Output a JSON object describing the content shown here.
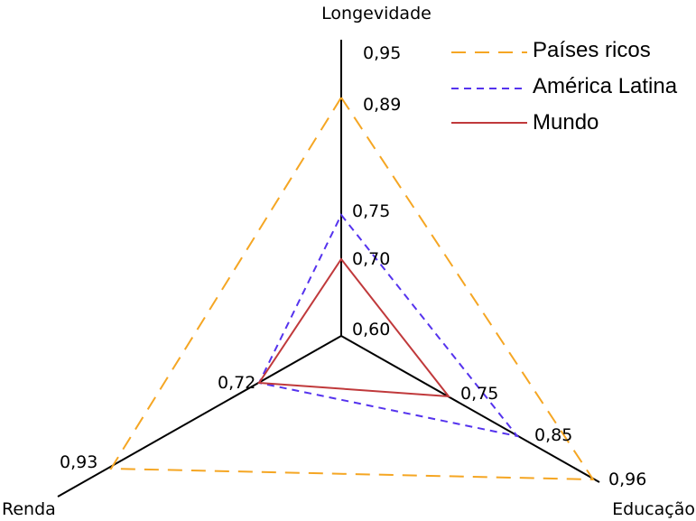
{
  "chart_data": {
    "type": "radar",
    "title": "",
    "axes": [
      "Longevidade",
      "Educação",
      "Renda"
    ],
    "scale": {
      "min": 0.6,
      "max": 0.95
    },
    "series": [
      {
        "name": "Países ricos",
        "values": [
          0.89,
          0.96,
          0.93
        ],
        "color": "#f5a623",
        "dash": "dashed-long"
      },
      {
        "name": "América Latina",
        "values": [
          0.75,
          0.85,
          0.72
        ],
        "color": "#5533ee",
        "dash": "dashed-short"
      },
      {
        "name": "Mundo",
        "values": [
          0.7,
          0.75,
          0.72
        ],
        "color": "#c0393b",
        "dash": "solid"
      }
    ],
    "longevity_tick_labels": [
      "0,95",
      "0,89",
      "0,75",
      "0,70",
      "0,60"
    ],
    "value_labels": {
      "educacao": [
        "0,75",
        "0,85",
        "0,96"
      ],
      "renda": [
        "0,72",
        "0,93"
      ]
    },
    "legend_position": "top-right",
    "grid": false
  }
}
